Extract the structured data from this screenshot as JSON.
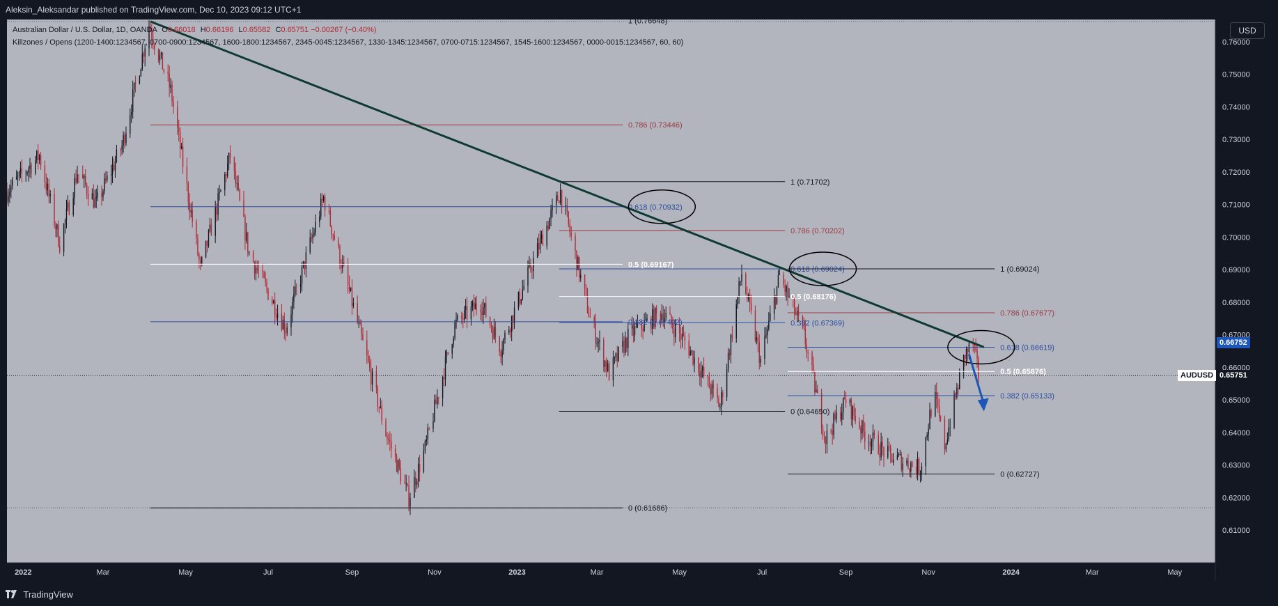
{
  "header": {
    "published_text": "Aleksin_Aleksandar published on TradingView.com, Dec 10, 2023 09:12 UTC+1"
  },
  "legend": {
    "symbol_title": "Australian Dollar / U.S. Dollar, 1D, OANDA",
    "open_label": "O",
    "open": "0.66018",
    "high_label": "H",
    "high": "0.66196",
    "low_label": "L",
    "low": "0.65582",
    "close_label": "C",
    "close": "0.65751",
    "change": "−0.00267 (−0.40%)",
    "indicator": "Killzones / Opens (1200-1400:1234567, 0700-0900:1234567, 1600-1800:1234567, 2345-0045:1234567, 1330-1345:1234567, 0700-0715:1234567, 1545-1600:1234567, 0000-0015:1234567, 60, 60)"
  },
  "toolbar": {
    "currency": "USD"
  },
  "footer": {
    "brand": "TradingView"
  },
  "colors": {
    "background": "#b2b5be",
    "bull": "#131722",
    "bear": "#b22833",
    "trendline": "#0f3a32",
    "fib_blue": "#2f4ea0",
    "fib_red": "#9c3b44",
    "fib_white": "#ffffff",
    "fib_black": "#131722",
    "arrow": "#1c56b8",
    "last_price_tag": "#131722",
    "high_price_tag": "#1c56b8"
  },
  "chart_data": {
    "type": "candlestick",
    "symbol": "AUDUSD",
    "ylim": [
      0.6,
      0.7668
    ],
    "y_ticks": [
      "0.76000",
      "0.75000",
      "0.74000",
      "0.73000",
      "0.72000",
      "0.71000",
      "0.70000",
      "0.69000",
      "0.68000",
      "0.67000",
      "0.66000",
      "0.65000",
      "0.64000",
      "0.63000",
      "0.62000",
      "0.61000"
    ],
    "x_ticks": [
      {
        "label": "2022",
        "date": "2022-01-01"
      },
      {
        "label": "Mar",
        "date": "2022-03-01"
      },
      {
        "label": "May",
        "date": "2022-05-01"
      },
      {
        "label": "Jul",
        "date": "2022-07-01"
      },
      {
        "label": "Sep",
        "date": "2022-09-01"
      },
      {
        "label": "Nov",
        "date": "2022-11-01"
      },
      {
        "label": "2023",
        "date": "2023-01-01"
      },
      {
        "label": "Mar",
        "date": "2023-03-01"
      },
      {
        "label": "May",
        "date": "2023-05-01"
      },
      {
        "label": "Jul",
        "date": "2023-07-01"
      },
      {
        "label": "Sep",
        "date": "2023-09-01"
      },
      {
        "label": "Nov",
        "date": "2023-11-01"
      },
      {
        "label": "2024",
        "date": "2024-01-01"
      },
      {
        "label": "Mar",
        "date": "2024-03-01"
      },
      {
        "label": "May",
        "date": "2024-05-01"
      }
    ],
    "x_range": [
      "2021-12-20",
      "2024-05-31"
    ],
    "price_path": [
      {
        "date": "2021-12-20",
        "price": 0.714
      },
      {
        "date": "2022-01-13",
        "price": 0.725
      },
      {
        "date": "2022-01-28",
        "price": 0.698
      },
      {
        "date": "2022-02-10",
        "price": 0.72
      },
      {
        "date": "2022-02-24",
        "price": 0.71
      },
      {
        "date": "2022-03-15",
        "price": 0.728
      },
      {
        "date": "2022-04-04",
        "price": 0.765
      },
      {
        "date": "2022-04-20",
        "price": 0.745
      },
      {
        "date": "2022-05-12",
        "price": 0.69
      },
      {
        "date": "2022-06-03",
        "price": 0.725
      },
      {
        "date": "2022-06-17",
        "price": 0.695
      },
      {
        "date": "2022-07-14",
        "price": 0.672
      },
      {
        "date": "2022-08-11",
        "price": 0.712
      },
      {
        "date": "2022-09-01",
        "price": 0.68
      },
      {
        "date": "2022-09-26",
        "price": 0.64
      },
      {
        "date": "2022-10-13",
        "price": 0.62
      },
      {
        "date": "2022-10-25",
        "price": 0.635
      },
      {
        "date": "2022-11-16",
        "price": 0.673
      },
      {
        "date": "2022-12-05",
        "price": 0.68
      },
      {
        "date": "2022-12-20",
        "price": 0.666
      },
      {
        "date": "2023-01-15",
        "price": 0.695
      },
      {
        "date": "2023-02-02",
        "price": 0.714
      },
      {
        "date": "2023-02-24",
        "price": 0.675
      },
      {
        "date": "2023-03-10",
        "price": 0.658
      },
      {
        "date": "2023-03-25",
        "price": 0.67
      },
      {
        "date": "2023-04-18",
        "price": 0.677
      },
      {
        "date": "2023-05-05",
        "price": 0.668
      },
      {
        "date": "2023-05-31",
        "price": 0.648
      },
      {
        "date": "2023-06-16",
        "price": 0.689
      },
      {
        "date": "2023-06-30",
        "price": 0.662
      },
      {
        "date": "2023-07-14",
        "price": 0.688
      },
      {
        "date": "2023-08-01",
        "price": 0.67
      },
      {
        "date": "2023-08-17",
        "price": 0.638
      },
      {
        "date": "2023-09-01",
        "price": 0.65
      },
      {
        "date": "2023-09-14",
        "price": 0.64
      },
      {
        "date": "2023-10-02",
        "price": 0.633
      },
      {
        "date": "2023-10-26",
        "price": 0.629
      },
      {
        "date": "2023-11-05",
        "price": 0.652
      },
      {
        "date": "2023-11-13",
        "price": 0.636
      },
      {
        "date": "2023-11-28",
        "price": 0.664
      },
      {
        "date": "2023-12-04",
        "price": 0.667
      },
      {
        "date": "2023-12-08",
        "price": 0.6575
      }
    ],
    "trendline": {
      "from": {
        "date": "2022-04-05",
        "price": 0.7662
      },
      "to": {
        "date": "2023-12-12",
        "price": 0.6662
      }
    },
    "fib_levels": [
      {
        "label": "0.786 (0.73446)",
        "price": 0.73446,
        "start": "2022-04-05",
        "end": "2023-03-20",
        "color": "red"
      },
      {
        "label": "1 (0.71702)",
        "price": 0.71702,
        "start": "2023-02-01",
        "end": "2023-07-18",
        "color": "black"
      },
      {
        "label": "0.618 (0.70932)",
        "price": 0.70932,
        "start": "2022-04-05",
        "end": "2023-03-20",
        "color": "blue"
      },
      {
        "label": "0.786 (0.70202)",
        "price": 0.70202,
        "start": "2023-02-01",
        "end": "2023-07-18",
        "color": "red"
      },
      {
        "label": "0.5 (0.69167)",
        "price": 0.69167,
        "start": "2022-04-05",
        "end": "2023-03-20",
        "color": "white"
      },
      {
        "label": "0.618 (0.69024)",
        "price": 0.69024,
        "start": "2023-02-01",
        "end": "2023-07-18",
        "color": "blue"
      },
      {
        "label": "1 (0.69024)",
        "price": 0.69024,
        "start": "2023-07-20",
        "end": "2023-12-20",
        "color": "black"
      },
      {
        "label": "0.5 (0.68176)",
        "price": 0.68176,
        "start": "2023-02-01",
        "end": "2023-07-18",
        "color": "white"
      },
      {
        "label": "0.786 (0.67677)",
        "price": 0.67677,
        "start": "2023-07-20",
        "end": "2023-12-20",
        "color": "red"
      },
      {
        "label": "0.382 (0.67402)",
        "price": 0.67402,
        "start": "2022-04-05",
        "end": "2023-03-20",
        "color": "blue"
      },
      {
        "label": "0.382 (0.67369)",
        "price": 0.67369,
        "start": "2023-02-01",
        "end": "2023-07-18",
        "color": "blue"
      },
      {
        "label": "0.618 (0.66619)",
        "price": 0.66619,
        "start": "2023-07-20",
        "end": "2023-12-20",
        "color": "blue"
      },
      {
        "label": "0.5 (0.65876)",
        "price": 0.65876,
        "start": "2023-07-20",
        "end": "2023-12-20",
        "color": "white"
      },
      {
        "label": "0.382 (0.65133)",
        "price": 0.65133,
        "start": "2023-07-20",
        "end": "2023-12-20",
        "color": "blue"
      },
      {
        "label": "0 (0.64650)",
        "price": 0.6465,
        "start": "2023-02-01",
        "end": "2023-07-18",
        "color": "black"
      },
      {
        "label": "0 (0.62727)",
        "price": 0.62727,
        "start": "2023-07-20",
        "end": "2023-12-20",
        "color": "black"
      },
      {
        "label": "0 (0.61686)",
        "price": 0.61686,
        "start": "2022-04-05",
        "end": "2023-03-20",
        "color": "black"
      },
      {
        "label": "1 (0.76648)",
        "price": 0.76648,
        "start": "2022-04-05",
        "end": "2023-03-20",
        "color": "black"
      }
    ],
    "highlight_circles": [
      {
        "date": "2023-04-18",
        "price": 0.70932
      },
      {
        "date": "2023-08-15",
        "price": 0.69024
      },
      {
        "date": "2023-12-10",
        "price": 0.66619
      }
    ],
    "forecast_arrow": {
      "from": {
        "date": "2023-12-01",
        "price": 0.664
      },
      "to": {
        "date": "2023-12-12",
        "price": 0.6465
      }
    },
    "price_tags": [
      {
        "label": "0.66752",
        "price": 0.66752,
        "kind": "high"
      },
      {
        "symbol": "AUDUSD",
        "label": "0.65751",
        "price": 0.65751,
        "kind": "last"
      }
    ]
  }
}
